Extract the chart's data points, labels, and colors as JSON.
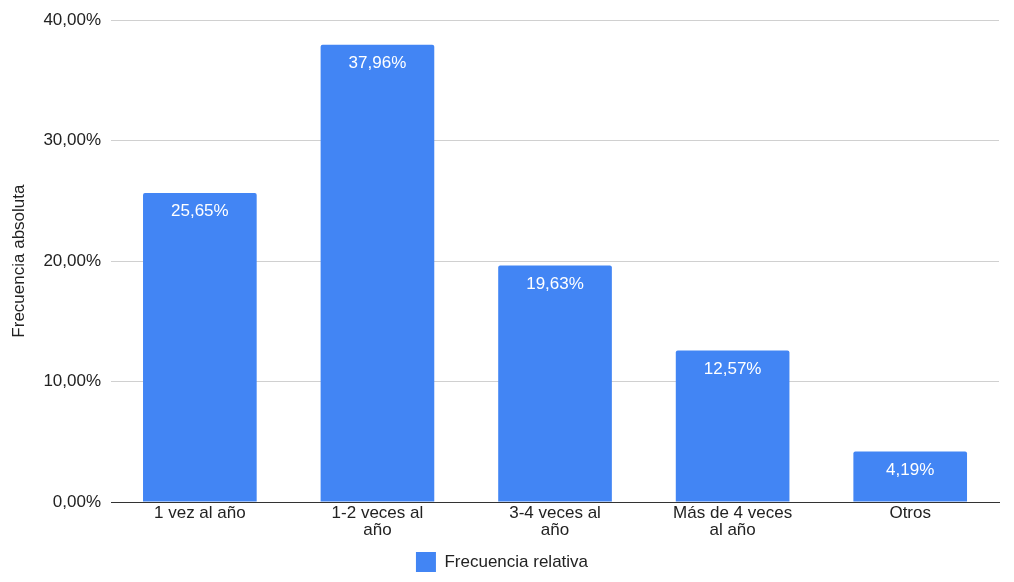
{
  "chart_data": {
    "type": "bar",
    "categories": [
      "1 vez al año",
      "1-2 veces al año",
      "3-4 veces al año",
      "Más de 4 veces al año",
      "Otros"
    ],
    "series": [
      {
        "name": "Frecuencia relativa",
        "color": "#4285f4",
        "values": [
          25.65,
          37.96,
          19.63,
          12.57,
          4.19
        ],
        "value_labels": [
          "25,65%",
          "37,96%",
          "19,63%",
          "12,57%",
          "4,19%"
        ]
      }
    ],
    "ylabel": "Frecuencia absoluta",
    "ylim": [
      0,
      40
    ],
    "yticks": [
      {
        "value": 0,
        "label": "0,00%"
      },
      {
        "value": 10,
        "label": "10,00%"
      },
      {
        "value": 20,
        "label": "20,00%"
      },
      {
        "value": 30,
        "label": "30,00%"
      },
      {
        "value": 40,
        "label": "40,00%"
      }
    ],
    "grid": "y",
    "legend": "bottom"
  }
}
